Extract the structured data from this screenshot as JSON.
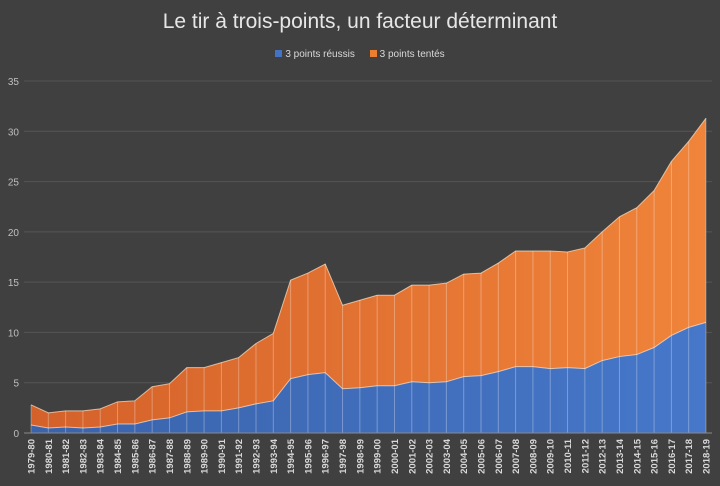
{
  "chart_data": {
    "type": "area",
    "title": "Le tir à trois-points, un facteur déterminant",
    "xlabel": "",
    "ylabel": "",
    "ylim": [
      0,
      35
    ],
    "yticks": [
      0,
      5,
      10,
      15,
      20,
      25,
      30,
      35
    ],
    "grid": true,
    "legend_position": "top",
    "categories": [
      "1979-80",
      "1980-81",
      "1981-82",
      "1982-83",
      "1983-84",
      "1984-85",
      "1985-86",
      "1986-87",
      "1987-88",
      "1988-89",
      "1989-90",
      "1990-91",
      "1991-92",
      "1992-93",
      "1993-94",
      "1994-95",
      "1995-96",
      "1996-97",
      "1997-98",
      "1998-99",
      "1999-00",
      "2000-01",
      "2001-02",
      "2002-03",
      "2003-04",
      "2004-05",
      "2005-06",
      "2006-07",
      "2007-08",
      "2008-09",
      "2009-10",
      "2010-11",
      "2011-12",
      "2012-13",
      "2013-14",
      "2014-15",
      "2015-16",
      "2016-17",
      "2017-18",
      "2018-19"
    ],
    "series": [
      {
        "name": "3 points tentés",
        "color": "#ed7d31",
        "values": [
          2.8,
          2.0,
          2.2,
          2.2,
          2.4,
          3.1,
          3.2,
          4.6,
          4.9,
          6.5,
          6.5,
          7.0,
          7.5,
          8.9,
          9.9,
          15.2,
          15.9,
          16.8,
          12.7,
          13.2,
          13.7,
          13.7,
          14.7,
          14.7,
          14.9,
          15.8,
          15.9,
          16.9,
          18.1,
          18.1,
          18.1,
          18.0,
          18.4,
          20.0,
          21.5,
          22.4,
          24.1,
          27.0,
          29.0,
          31.3
        ]
      },
      {
        "name": "3 points réussis",
        "color": "#4472c4",
        "values": [
          0.8,
          0.5,
          0.6,
          0.5,
          0.6,
          0.9,
          0.9,
          1.3,
          1.5,
          2.1,
          2.2,
          2.2,
          2.5,
          2.9,
          3.2,
          5.4,
          5.8,
          6.0,
          4.4,
          4.5,
          4.7,
          4.7,
          5.1,
          5.0,
          5.1,
          5.6,
          5.7,
          6.1,
          6.6,
          6.6,
          6.4,
          6.5,
          6.4,
          7.2,
          7.6,
          7.8,
          8.5,
          9.7,
          10.5,
          11.0
        ]
      }
    ]
  }
}
